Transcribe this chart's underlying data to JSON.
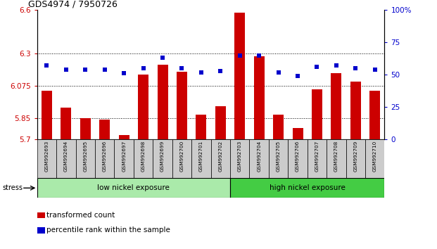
{
  "title": "GDS4974 / 7950726",
  "samples": [
    "GSM992693",
    "GSM992694",
    "GSM992695",
    "GSM992696",
    "GSM992697",
    "GSM992698",
    "GSM992699",
    "GSM992700",
    "GSM992701",
    "GSM992702",
    "GSM992703",
    "GSM992704",
    "GSM992705",
    "GSM992706",
    "GSM992707",
    "GSM992708",
    "GSM992709",
    "GSM992710"
  ],
  "transformed_count": [
    6.04,
    5.92,
    5.85,
    5.84,
    5.73,
    6.15,
    6.22,
    6.17,
    5.87,
    5.93,
    6.58,
    6.28,
    5.87,
    5.78,
    6.05,
    6.16,
    6.1,
    6.04
  ],
  "percentile_rank": [
    57,
    54,
    54,
    54,
    51,
    55,
    63,
    55,
    52,
    53,
    65,
    65,
    52,
    49,
    56,
    57,
    55,
    54
  ],
  "ymin": 5.7,
  "ymax": 6.6,
  "yticks": [
    5.7,
    5.85,
    6.075,
    6.3,
    6.6
  ],
  "ytick_labels": [
    "5.7",
    "5.85",
    "6.075",
    "6.3",
    "6.6"
  ],
  "y2min": 0,
  "y2max": 100,
  "y2ticks": [
    0,
    25,
    50,
    75,
    100
  ],
  "y2tick_labels": [
    "0",
    "25",
    "50",
    "75",
    "100%"
  ],
  "dotted_lines": [
    5.85,
    6.075,
    6.3
  ],
  "bar_color": "#cc0000",
  "dot_color": "#0000cc",
  "bar_bottom": 5.7,
  "group1_label": "low nickel exposure",
  "group2_label": "high nickel exposure",
  "group1_count": 10,
  "group1_color": "#aaeaaa",
  "group2_color": "#44cc44",
  "stress_label": "stress",
  "legend_bar_label": "transformed count",
  "legend_dot_label": "percentile rank within the sample",
  "left_axis_color": "#cc0000",
  "right_axis_color": "#0000cc",
  "bg_xtick": "#cccccc"
}
